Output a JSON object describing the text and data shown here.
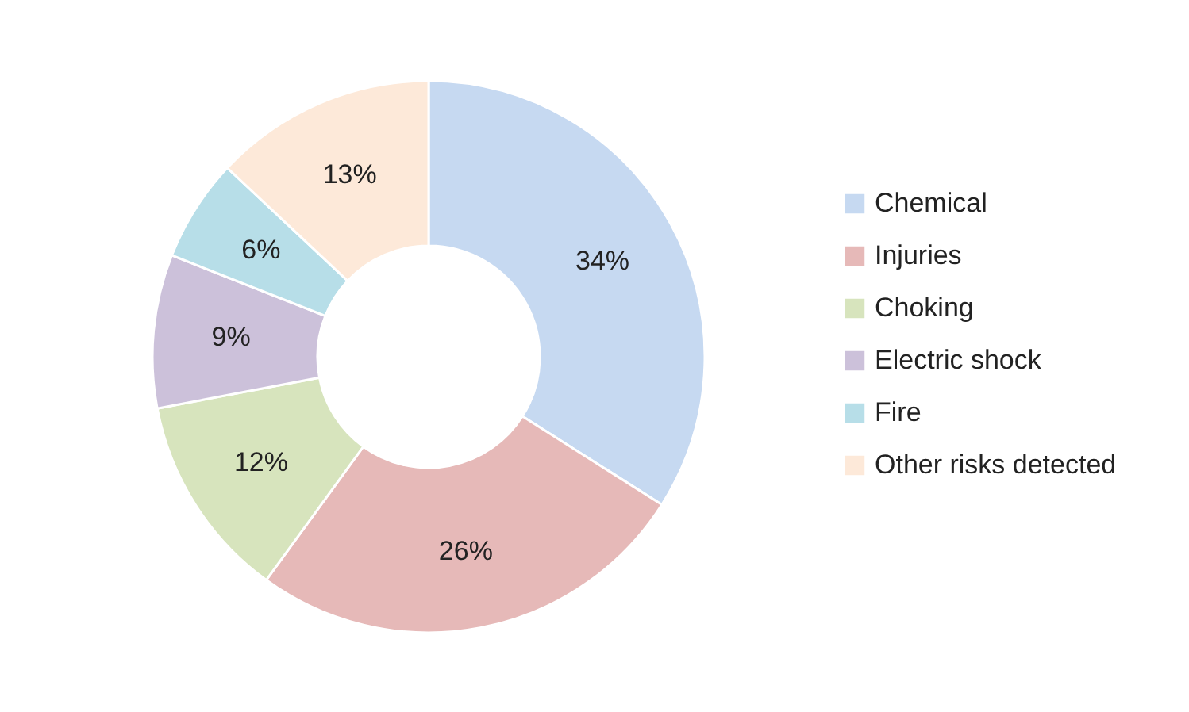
{
  "chart_data": {
    "type": "donut",
    "categories": [
      "Chemical",
      "Injuries",
      "Choking",
      "Electric shock",
      "Fire",
      "Other risks detected"
    ],
    "values": [
      34,
      26,
      12,
      9,
      6,
      13
    ],
    "value_labels": [
      "34%",
      "26%",
      "12%",
      "9%",
      "6%",
      "13%"
    ],
    "colors": [
      "#c6d9f1",
      "#e6b9b8",
      "#d7e4bd",
      "#ccc1da",
      "#b7dee8",
      "#fde9d9"
    ],
    "legend": "right"
  }
}
